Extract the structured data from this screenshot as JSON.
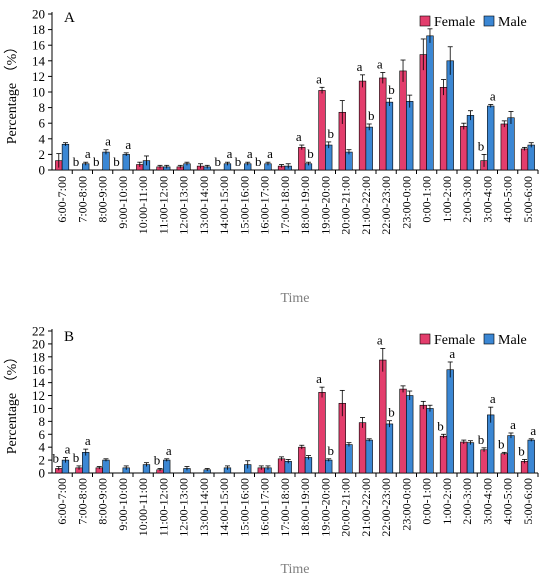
{
  "chart_data": [
    {
      "panel": "A",
      "type": "bar",
      "xlabel": "Time",
      "ylabel": "Percentage （%）",
      "ylim": [
        0,
        20
      ],
      "yticks": [
        0,
        2,
        4,
        6,
        8,
        10,
        12,
        14,
        16,
        18,
        20
      ],
      "legend_position": "top-right",
      "categories": [
        "6:00-7:00",
        "7:00-8:00",
        "8:00-9:00",
        "9:00-10:00",
        "10:00-11:00",
        "11:00-12:00",
        "12:00-13:00",
        "13:00-14:00",
        "14:00-15:00",
        "15:00-16:00",
        "16:00-17:00",
        "17:00-18:00",
        "18:00-19:00",
        "19:00-20:00",
        "20:00-21:00",
        "21:00-22:00",
        "22:00-23:00",
        "23:00-0:00",
        "0:00-1:00",
        "1:00-2:00",
        "2:00-3:00",
        "3:00-4:00",
        "4:00-5:00",
        "5:00-6:00"
      ],
      "series": [
        {
          "name": "Female",
          "color": "#e33d6c",
          "values": [
            1.2,
            0,
            0,
            0,
            0.7,
            0.4,
            0.4,
            0.5,
            0,
            0,
            0,
            0.5,
            2.9,
            10.2,
            7.4,
            11.4,
            11.8,
            12.7,
            14.8,
            10.6,
            5.6,
            1.2,
            5.9,
            2.7
          ],
          "errors": [
            0.9,
            0,
            0,
            0,
            0.3,
            0.2,
            0.2,
            0.3,
            0,
            0,
            0,
            0.2,
            0.3,
            0.4,
            1.5,
            0.8,
            0.7,
            1.4,
            2.0,
            1.0,
            0.4,
            0.8,
            0.4,
            0.2
          ]
        },
        {
          "name": "Male",
          "color": "#3b87d4",
          "values": [
            3.3,
            0.8,
            2.3,
            2.0,
            1.2,
            0.4,
            0.8,
            0.4,
            0.8,
            0.8,
            0.8,
            0.5,
            0.8,
            3.2,
            2.3,
            5.5,
            8.7,
            8.8,
            17.2,
            14.0,
            7.0,
            8.2,
            6.7,
            3.2
          ],
          "errors": [
            0.2,
            0.2,
            0.3,
            0.2,
            0.6,
            0.2,
            0.2,
            0.2,
            0.2,
            0.2,
            0.2,
            0.3,
            0.2,
            0.4,
            0.3,
            0.4,
            0.5,
            0.8,
            0.9,
            1.8,
            0.6,
            0.2,
            0.8,
            0.3
          ]
        }
      ],
      "annotations": [
        {
          "index": 1,
          "female": "b",
          "male": "a"
        },
        {
          "index": 2,
          "female": "b",
          "male": "a"
        },
        {
          "index": 3,
          "female": "b",
          "male": "a"
        },
        {
          "index": 8,
          "female": "b",
          "male": "a"
        },
        {
          "index": 9,
          "female": "b",
          "male": "a"
        },
        {
          "index": 10,
          "female": "b",
          "male": "a"
        },
        {
          "index": 12,
          "female": "a",
          "male": "b"
        },
        {
          "index": 13,
          "female": "a",
          "male": "b"
        },
        {
          "index": 15,
          "female": "a",
          "male": "b"
        },
        {
          "index": 16,
          "female": "a",
          "male": "b"
        },
        {
          "index": 21,
          "female": "b",
          "male": "a"
        }
      ]
    },
    {
      "panel": "B",
      "type": "bar",
      "xlabel": "Time",
      "ylabel": "Percentage （%）",
      "ylim": [
        0,
        22
      ],
      "yticks": [
        0,
        2,
        4,
        6,
        8,
        10,
        12,
        14,
        16,
        18,
        20,
        22
      ],
      "legend_position": "top-right",
      "categories": [
        "6:00-7:00",
        "7:00-8:00",
        "8:00-9:00",
        "9:00-10:00",
        "10:00-11:00",
        "11:00-12:00",
        "12:00-13:00",
        "13:00-14:00",
        "14:00-15:00",
        "15:00-16:00",
        "16:00-17:00",
        "17:00-18:00",
        "18:00-19:00",
        "19:00-20:00",
        "20:00-21:00",
        "21:00-22:00",
        "22:00-23:00",
        "23:00-0:00",
        "0:00-1:00",
        "1:00-2:00",
        "2:00-3:00",
        "3:00-4:00",
        "4:00-5:00",
        "5:00-6:00"
      ],
      "series": [
        {
          "name": "Female",
          "color": "#e33d6c",
          "values": [
            0.7,
            0.8,
            0.8,
            0,
            0,
            0.5,
            0,
            0,
            0,
            0,
            0.8,
            2.2,
            4.0,
            12.5,
            10.8,
            7.8,
            17.5,
            13.0,
            10.5,
            5.7,
            4.8,
            3.6,
            3.0,
            1.8
          ],
          "errors": [
            0.3,
            0.3,
            0.2,
            0,
            0,
            0.2,
            0,
            0,
            0,
            0,
            0.3,
            0.3,
            0.3,
            0.8,
            2.0,
            0.8,
            1.8,
            0.5,
            0.6,
            0.3,
            0.3,
            0.3,
            0.2,
            0.3
          ]
        },
        {
          "name": "Male",
          "color": "#3b87d4",
          "values": [
            2.0,
            3.2,
            2.0,
            0.8,
            1.3,
            2.0,
            0.7,
            0.5,
            0.8,
            1.3,
            0.8,
            1.8,
            2.4,
            2.0,
            4.4,
            5.1,
            7.6,
            12.0,
            10.0,
            16.0,
            4.7,
            9.0,
            5.8,
            5.1
          ],
          "errors": [
            0.4,
            0.5,
            0.2,
            0.3,
            0.3,
            0.2,
            0.3,
            0.2,
            0.3,
            0.6,
            0.3,
            0.3,
            0.3,
            0.2,
            0.3,
            0.2,
            0.5,
            0.7,
            0.5,
            1.2,
            0.3,
            1.2,
            0.4,
            0.2
          ]
        }
      ],
      "annotations": [
        {
          "index": 0,
          "female": "b",
          "male": "a"
        },
        {
          "index": 1,
          "female": "b",
          "male": "a"
        },
        {
          "index": 5,
          "female": "b",
          "male": "a"
        },
        {
          "index": 13,
          "female": "a",
          "male": "b"
        },
        {
          "index": 16,
          "female": "a",
          "male": "b"
        },
        {
          "index": 19,
          "female": "b",
          "male": "a"
        },
        {
          "index": 21,
          "female": "b",
          "male": "a"
        },
        {
          "index": 22,
          "female": "b",
          "male": "a"
        },
        {
          "index": 23,
          "female": "b",
          "male": "a"
        }
      ]
    }
  ]
}
